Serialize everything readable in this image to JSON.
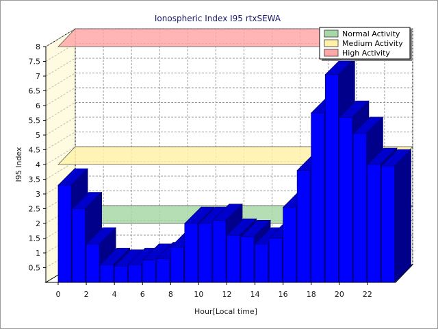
{
  "chart_data": {
    "type": "bar",
    "title": "Ionospheric Index I95 rtxSEWA",
    "xlabel": "Hour[Local time]",
    "ylabel": "I95 Index",
    "x": [
      0,
      1,
      2,
      3,
      4,
      5,
      6,
      7,
      8,
      9,
      10,
      11,
      12,
      13,
      14,
      15,
      16,
      17,
      18,
      19,
      20,
      21,
      22,
      23
    ],
    "values": [
      3.3,
      2.5,
      1.3,
      0.6,
      0.55,
      0.6,
      0.75,
      0.8,
      1.2,
      2.0,
      2.0,
      2.1,
      1.6,
      1.55,
      1.3,
      1.5,
      2.55,
      3.8,
      5.75,
      7.05,
      5.6,
      5.05,
      4.0,
      3.95
    ],
    "xticks": [
      "0",
      "2",
      "4",
      "6",
      "8",
      "10",
      "12",
      "14",
      "16",
      "18",
      "20",
      "22"
    ],
    "yticks": [
      "0.5",
      "1",
      "1.5",
      "2",
      "2.5",
      "3",
      "3.5",
      "4",
      "4.5",
      "5",
      "5.5",
      "6",
      "6.5",
      "7",
      "7.5",
      "8"
    ],
    "ylim": [
      0,
      8
    ],
    "grid": true,
    "bar_color": "#0000ff",
    "bands": [
      {
        "name": "Normal Activity",
        "value": 2,
        "color": "#a8d8a8"
      },
      {
        "name": "Medium Activity",
        "value": 4,
        "color": "#fff2a8"
      },
      {
        "name": "High Activity",
        "value": 8,
        "color": "#ffa8a8"
      }
    ],
    "legend": "top-right"
  }
}
